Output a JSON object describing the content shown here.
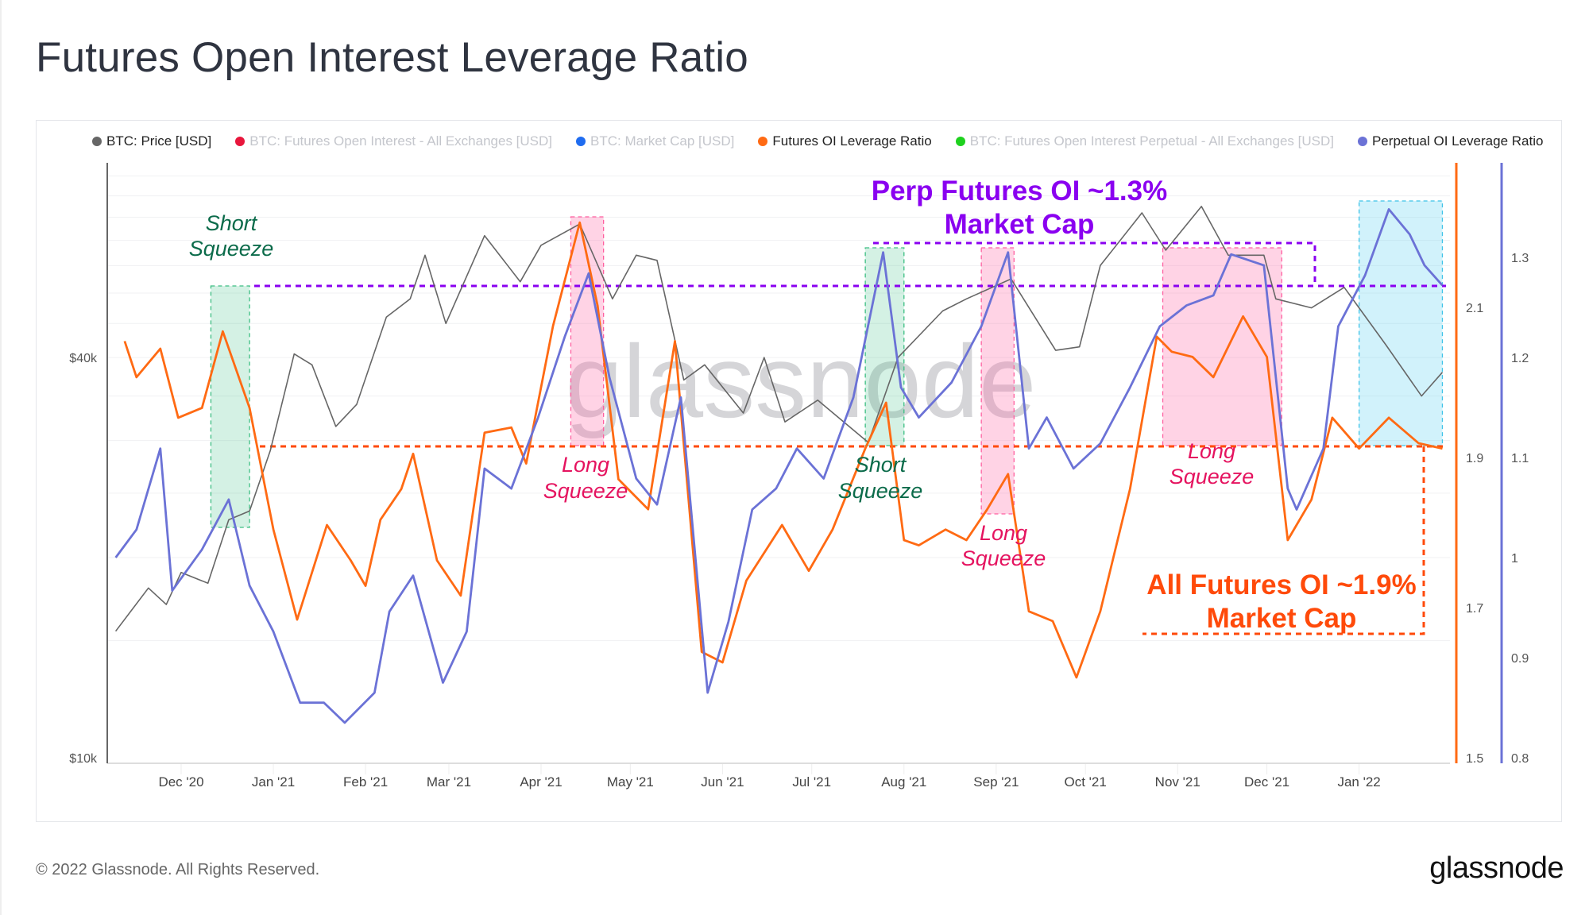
{
  "title": "Futures Open Interest Leverage Ratio",
  "legend": [
    {
      "label": "BTC: Price [USD]",
      "color": "#666666",
      "muted": false
    },
    {
      "label": "BTC: Futures Open Interest - All Exchanges [USD]",
      "color": "#e8163c",
      "muted": true
    },
    {
      "label": "BTC: Market Cap [USD]",
      "color": "#1f6cf0",
      "muted": true
    },
    {
      "label": "Futures OI Leverage Ratio",
      "color": "#ff6a13",
      "muted": false
    },
    {
      "label": "BTC: Futures Open Interest Perpetual - All Exchanges [USD]",
      "color": "#1ed11e",
      "muted": true
    },
    {
      "label": "Perpetual OI Leverage Ratio",
      "color": "#6b72d6",
      "muted": false
    }
  ],
  "footer": {
    "copyright": "© 2022 Glassnode. All Rights Reserved.",
    "logo": "glassnode",
    "watermark": "glassnode"
  },
  "chart_data": {
    "type": "line",
    "title": "Futures Open Interest Leverage Ratio",
    "x_ticks": [
      {
        "date": "2020-12-01",
        "label": "Dec '20"
      },
      {
        "date": "2021-01-01",
        "label": "Jan '21"
      },
      {
        "date": "2021-02-01",
        "label": "Feb '21"
      },
      {
        "date": "2021-03-01",
        "label": "Mar '21"
      },
      {
        "date": "2021-04-01",
        "label": "Apr '21"
      },
      {
        "date": "2021-05-01",
        "label": "May '21"
      },
      {
        "date": "2021-06-01",
        "label": "Jun '21"
      },
      {
        "date": "2021-07-01",
        "label": "Jul '21"
      },
      {
        "date": "2021-08-01",
        "label": "Aug '21"
      },
      {
        "date": "2021-09-01",
        "label": "Sep '21"
      },
      {
        "date": "2021-10-01",
        "label": "Oct '21"
      },
      {
        "date": "2021-11-01",
        "label": "Nov '21"
      },
      {
        "date": "2021-12-01",
        "label": "Dec '21"
      },
      {
        "date": "2022-01-01",
        "label": "Jan '22"
      }
    ],
    "xlim": [
      "2020-11-07",
      "2022-01-30"
    ],
    "axes": {
      "price": {
        "scale": "log",
        "ticks": [
          {
            "value": 40000,
            "label": "$40k"
          },
          {
            "value": 10000,
            "label": "$10k"
          }
        ],
        "ylim": [
          10000,
          78000
        ]
      },
      "futures_ratio": {
        "scale": "linear",
        "ticks": [
          "2.1",
          "1.9",
          "1.7",
          "1.5"
        ],
        "ylim": [
          1.5,
          2.29
        ],
        "color": "#ff6a13"
      },
      "perp_ratio": {
        "scale": "linear",
        "ticks": [
          "1.3",
          "1.2",
          "1.1",
          "1",
          "0.9",
          "0.8"
        ],
        "ylim": [
          0.8,
          1.39
        ],
        "color": "#6b72d6"
      }
    },
    "series": [
      {
        "name": "BTC: Price [USD]",
        "axis": "price",
        "color": "#666666",
        "points": [
          [
            "2020-11-09",
            15500
          ],
          [
            "2020-11-20",
            18000
          ],
          [
            "2020-11-26",
            17000
          ],
          [
            "2020-12-01",
            19000
          ],
          [
            "2020-12-10",
            18300
          ],
          [
            "2020-12-17",
            22800
          ],
          [
            "2020-12-24",
            23500
          ],
          [
            "2020-12-31",
            29000
          ],
          [
            "2021-01-08",
            40500
          ],
          [
            "2021-01-14",
            39000
          ],
          [
            "2021-01-22",
            31500
          ],
          [
            "2021-01-29",
            34000
          ],
          [
            "2021-02-08",
            46000
          ],
          [
            "2021-02-16",
            49000
          ],
          [
            "2021-02-21",
            57000
          ],
          [
            "2021-02-28",
            45000
          ],
          [
            "2021-03-13",
            61000
          ],
          [
            "2021-03-25",
            52000
          ],
          [
            "2021-04-01",
            59000
          ],
          [
            "2021-04-14",
            63500
          ],
          [
            "2021-04-25",
            49000
          ],
          [
            "2021-05-03",
            57000
          ],
          [
            "2021-05-10",
            56000
          ],
          [
            "2021-05-19",
            37000
          ],
          [
            "2021-05-26",
            39000
          ],
          [
            "2021-06-08",
            33000
          ],
          [
            "2021-06-15",
            40000
          ],
          [
            "2021-06-22",
            32000
          ],
          [
            "2021-07-03",
            34500
          ],
          [
            "2021-07-20",
            29800
          ],
          [
            "2021-07-30",
            40000
          ],
          [
            "2021-08-14",
            47000
          ],
          [
            "2021-08-22",
            49000
          ],
          [
            "2021-09-06",
            52500
          ],
          [
            "2021-09-21",
            41000
          ],
          [
            "2021-09-29",
            41500
          ],
          [
            "2021-10-06",
            55000
          ],
          [
            "2021-10-20",
            66000
          ],
          [
            "2021-10-28",
            58000
          ],
          [
            "2021-11-09",
            67500
          ],
          [
            "2021-11-18",
            57000
          ],
          [
            "2021-11-30",
            57000
          ],
          [
            "2021-12-04",
            49000
          ],
          [
            "2021-12-16",
            47500
          ],
          [
            "2021-12-27",
            51000
          ],
          [
            "2022-01-01",
            47500
          ],
          [
            "2022-01-10",
            41800
          ],
          [
            "2022-01-22",
            35000
          ],
          [
            "2022-01-29",
            38000
          ]
        ]
      },
      {
        "name": "Futures OI Leverage Ratio",
        "axis": "futures_ratio",
        "color": "#ff6a13",
        "points": [
          [
            "2020-11-12",
            2.055
          ],
          [
            "2020-11-16",
            2.007
          ],
          [
            "2020-11-24",
            2.045
          ],
          [
            "2020-11-30",
            1.953
          ],
          [
            "2020-12-08",
            1.966
          ],
          [
            "2020-12-15",
            2.068
          ],
          [
            "2020-12-24",
            1.966
          ],
          [
            "2021-01-01",
            1.804
          ],
          [
            "2021-01-09",
            1.684
          ],
          [
            "2021-01-19",
            1.81
          ],
          [
            "2021-01-27",
            1.763
          ],
          [
            "2021-02-01",
            1.729
          ],
          [
            "2021-02-06",
            1.817
          ],
          [
            "2021-02-13",
            1.858
          ],
          [
            "2021-02-17",
            1.905
          ],
          [
            "2021-02-25",
            1.763
          ],
          [
            "2021-03-05",
            1.716
          ],
          [
            "2021-03-13",
            1.933
          ],
          [
            "2021-03-22",
            1.94
          ],
          [
            "2021-03-27",
            1.892
          ],
          [
            "2021-04-05",
            2.075
          ],
          [
            "2021-04-14",
            2.213
          ],
          [
            "2021-04-20",
            2.102
          ],
          [
            "2021-04-27",
            1.871
          ],
          [
            "2021-05-07",
            1.831
          ],
          [
            "2021-05-16",
            2.055
          ],
          [
            "2021-05-25",
            1.641
          ],
          [
            "2021-06-01",
            1.627
          ],
          [
            "2021-06-09",
            1.736
          ],
          [
            "2021-06-21",
            1.81
          ],
          [
            "2021-06-30",
            1.749
          ],
          [
            "2021-07-08",
            1.804
          ],
          [
            "2021-07-19",
            1.912
          ],
          [
            "2021-07-26",
            1.973
          ],
          [
            "2021-08-01",
            1.79
          ],
          [
            "2021-08-06",
            1.783
          ],
          [
            "2021-08-15",
            1.804
          ],
          [
            "2021-08-22",
            1.79
          ],
          [
            "2021-08-29",
            1.831
          ],
          [
            "2021-09-05",
            1.878
          ],
          [
            "2021-09-12",
            1.695
          ],
          [
            "2021-09-20",
            1.682
          ],
          [
            "2021-09-28",
            1.607
          ],
          [
            "2021-10-06",
            1.695
          ],
          [
            "2021-10-16",
            1.858
          ],
          [
            "2021-10-25",
            2.061
          ],
          [
            "2021-10-30",
            2.041
          ],
          [
            "2021-11-06",
            2.034
          ],
          [
            "2021-11-13",
            2.007
          ],
          [
            "2021-11-23",
            2.088
          ],
          [
            "2021-12-01",
            2.034
          ],
          [
            "2021-12-08",
            1.79
          ],
          [
            "2021-12-16",
            1.844
          ],
          [
            "2021-12-23",
            1.953
          ],
          [
            "2022-01-01",
            1.912
          ],
          [
            "2022-01-11",
            1.953
          ],
          [
            "2022-01-21",
            1.919
          ],
          [
            "2022-01-29",
            1.912
          ]
        ]
      },
      {
        "name": "Perpetual OI Leverage Ratio",
        "axis": "perp_ratio",
        "color": "#6b72d6",
        "points": [
          [
            "2020-11-09",
            1.0
          ],
          [
            "2020-11-16",
            1.028
          ],
          [
            "2020-11-24",
            1.109
          ],
          [
            "2020-11-28",
            0.967
          ],
          [
            "2020-12-08",
            1.008
          ],
          [
            "2020-12-17",
            1.058
          ],
          [
            "2020-12-24",
            0.972
          ],
          [
            "2021-01-01",
            0.926
          ],
          [
            "2021-01-10",
            0.855
          ],
          [
            "2021-01-18",
            0.855
          ],
          [
            "2021-01-25",
            0.835
          ],
          [
            "2021-02-04",
            0.865
          ],
          [
            "2021-02-09",
            0.946
          ],
          [
            "2021-02-17",
            0.982
          ],
          [
            "2021-02-27",
            0.875
          ],
          [
            "2021-03-07",
            0.926
          ],
          [
            "2021-03-13",
            1.089
          ],
          [
            "2021-03-22",
            1.069
          ],
          [
            "2021-03-31",
            1.14
          ],
          [
            "2021-04-09",
            1.221
          ],
          [
            "2021-04-17",
            1.284
          ],
          [
            "2021-04-24",
            1.18
          ],
          [
            "2021-05-03",
            1.079
          ],
          [
            "2021-05-10",
            1.053
          ],
          [
            "2021-05-18",
            1.16
          ],
          [
            "2021-05-27",
            0.865
          ],
          [
            "2021-06-03",
            0.936
          ],
          [
            "2021-06-11",
            1.048
          ],
          [
            "2021-06-19",
            1.069
          ],
          [
            "2021-06-26",
            1.109
          ],
          [
            "2021-07-05",
            1.079
          ],
          [
            "2021-07-15",
            1.16
          ],
          [
            "2021-07-25",
            1.305
          ],
          [
            "2021-07-31",
            1.17
          ],
          [
            "2021-08-06",
            1.14
          ],
          [
            "2021-08-17",
            1.175
          ],
          [
            "2021-08-27",
            1.231
          ],
          [
            "2021-09-05",
            1.305
          ],
          [
            "2021-09-12",
            1.109
          ],
          [
            "2021-09-18",
            1.14
          ],
          [
            "2021-09-27",
            1.089
          ],
          [
            "2021-10-06",
            1.114
          ],
          [
            "2021-10-16",
            1.17
          ],
          [
            "2021-10-26",
            1.231
          ],
          [
            "2021-11-04",
            1.252
          ],
          [
            "2021-11-13",
            1.262
          ],
          [
            "2021-11-19",
            1.303
          ],
          [
            "2021-11-30",
            1.292
          ],
          [
            "2021-12-08",
            1.069
          ],
          [
            "2021-12-11",
            1.048
          ],
          [
            "2021-12-20",
            1.109
          ],
          [
            "2021-12-25",
            1.231
          ],
          [
            "2022-01-03",
            1.282
          ],
          [
            "2022-01-11",
            1.348
          ],
          [
            "2022-01-18",
            1.323
          ],
          [
            "2022-01-23",
            1.292
          ],
          [
            "2022-01-29",
            1.272
          ]
        ]
      }
    ],
    "annotations": {
      "regions": [
        {
          "type": "short",
          "start": "2020-12-11",
          "end": "2020-12-24",
          "label": [
            "Short",
            "Squeeze"
          ]
        },
        {
          "type": "long",
          "start": "2021-04-11",
          "end": "2021-04-22",
          "label": [
            "Long",
            "Squeeze"
          ]
        },
        {
          "type": "short",
          "start": "2021-07-19",
          "end": "2021-08-01",
          "label": [
            "Short",
            "Squeeze"
          ]
        },
        {
          "type": "long",
          "start": "2021-08-27",
          "end": "2021-09-07",
          "label": [
            "Long",
            "Squeeze"
          ]
        },
        {
          "type": "long",
          "start": "2021-10-27",
          "end": "2021-12-06",
          "label": [
            "Long",
            "Squeeze"
          ]
        },
        {
          "type": "perp-high",
          "start": "2022-01-01",
          "end": "2022-01-29",
          "label": []
        }
      ],
      "callouts": [
        {
          "type": "perp",
          "lines": [
            "Perp Futures OI ~1.3%",
            "Market Cap"
          ],
          "color": "#8a00f0"
        },
        {
          "type": "all",
          "lines": [
            "All Futures OI ~1.9%",
            "Market Cap"
          ],
          "color": "#ff4a0a"
        }
      ],
      "colors": {
        "short": "#0b6b4a",
        "long": "#e5135f"
      }
    }
  }
}
